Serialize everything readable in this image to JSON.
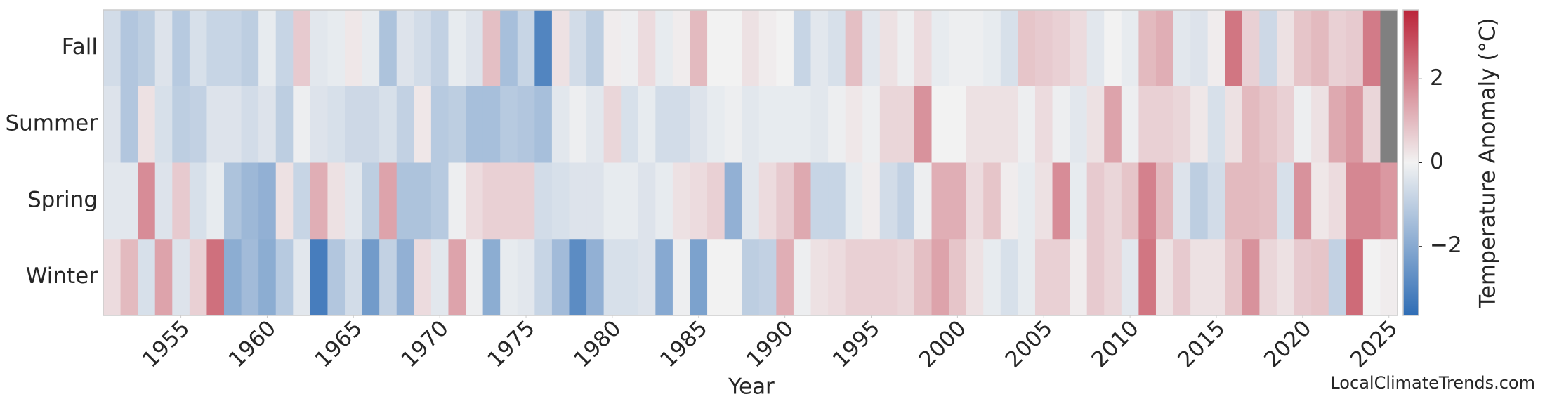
{
  "chart_data": {
    "type": "heatmap",
    "x_label": "Year",
    "x": [
      1951,
      1952,
      1953,
      1954,
      1955,
      1956,
      1957,
      1958,
      1959,
      1960,
      1961,
      1962,
      1963,
      1964,
      1965,
      1966,
      1967,
      1968,
      1969,
      1970,
      1971,
      1972,
      1973,
      1974,
      1975,
      1976,
      1977,
      1978,
      1979,
      1980,
      1981,
      1982,
      1983,
      1984,
      1985,
      1986,
      1987,
      1988,
      1989,
      1990,
      1991,
      1992,
      1993,
      1994,
      1995,
      1996,
      1997,
      1998,
      1999,
      2000,
      2001,
      2002,
      2003,
      2004,
      2005,
      2006,
      2007,
      2008,
      2009,
      2010,
      2011,
      2012,
      2013,
      2014,
      2015,
      2016,
      2017,
      2018,
      2019,
      2020,
      2021,
      2022,
      2023,
      2024,
      2025
    ],
    "xlim": [
      1950.5,
      2025.5
    ],
    "xticks": [
      1955,
      1960,
      1965,
      1970,
      1975,
      1980,
      1985,
      1990,
      1995,
      2000,
      2005,
      2010,
      2015,
      2020,
      2025
    ],
    "series": [
      {
        "name": "Fall",
        "values": [
          -0.6,
          -1.2,
          -1.0,
          -0.4,
          -1.1,
          -0.5,
          -0.8,
          -0.8,
          -1.0,
          -0.2,
          -0.8,
          0.7,
          -0.3,
          -0.2,
          0.2,
          -0.2,
          -1.3,
          -0.4,
          -0.6,
          -0.9,
          -0.2,
          -0.4,
          0.9,
          -1.4,
          -0.8,
          -3.0,
          0.3,
          -0.6,
          -1.0,
          0.1,
          -0.1,
          0.4,
          -0.2,
          0.1,
          1.0,
          0.0,
          0.0,
          0.3,
          0.1,
          0.0,
          -0.8,
          -0.3,
          -0.5,
          0.9,
          -0.3,
          0.3,
          -0.1,
          0.4,
          -0.2,
          -0.1,
          -0.1,
          -0.2,
          -0.5,
          0.8,
          0.7,
          0.6,
          0.4,
          -0.3,
          0.0,
          -0.2,
          1.0,
          1.2,
          -0.3,
          -0.4,
          0.1,
          2.2,
          0.6,
          -0.7,
          0.3,
          0.8,
          1.0,
          0.6,
          0.7,
          2.1,
          null
        ]
      },
      {
        "name": "Summer",
        "values": [
          -0.4,
          -1.2,
          0.3,
          -0.5,
          -1.0,
          -0.9,
          -0.4,
          -0.4,
          -0.6,
          -0.4,
          -1.0,
          -0.1,
          -0.4,
          -0.5,
          -0.7,
          -0.7,
          -0.5,
          -0.9,
          0.2,
          -1.1,
          -1.0,
          -1.4,
          -1.4,
          -1.1,
          -1.2,
          -1.4,
          -0.3,
          -0.1,
          -0.3,
          0.5,
          -0.5,
          -0.2,
          -0.6,
          -0.6,
          -0.4,
          -0.2,
          -0.1,
          -0.3,
          -0.2,
          -0.2,
          -0.2,
          -0.3,
          -0.1,
          0.2,
          -0.1,
          0.5,
          0.5,
          1.7,
          0.0,
          0.0,
          0.3,
          0.3,
          0.3,
          -0.1,
          0.4,
          -0.1,
          -0.3,
          0.3,
          1.4,
          -0.1,
          0.6,
          0.6,
          0.5,
          0.2,
          -0.5,
          0.3,
          1.0,
          0.8,
          0.6,
          -0.1,
          0.3,
          1.3,
          1.6,
          0.5,
          null
        ]
      },
      {
        "name": "Spring",
        "values": [
          -0.3,
          -0.3,
          1.8,
          -0.4,
          0.7,
          -0.5,
          -0.2,
          -1.3,
          -1.6,
          -1.8,
          0.3,
          -0.8,
          1.2,
          0.3,
          -0.3,
          -1.0,
          1.4,
          -1.3,
          -1.3,
          -1.1,
          -0.1,
          0.4,
          0.6,
          0.6,
          0.6,
          -0.6,
          -0.5,
          -0.4,
          -0.4,
          -0.2,
          -0.2,
          -0.4,
          -0.2,
          0.3,
          0.4,
          0.6,
          -1.8,
          -0.3,
          0.4,
          0.7,
          1.3,
          -0.8,
          -0.8,
          -0.2,
          0.1,
          -0.6,
          -0.9,
          -0.1,
          1.2,
          1.2,
          0.4,
          0.8,
          0.1,
          -0.2,
          0.3,
          1.8,
          -0.2,
          0.7,
          0.5,
          0.8,
          2.0,
          1.0,
          -0.4,
          -1.0,
          -0.6,
          1.0,
          1.0,
          0.9,
          -0.5,
          1.7,
          0.2,
          0.4,
          1.9,
          1.9,
          1.6
        ]
      },
      {
        "name": "Winter",
        "values": [
          0.4,
          1.0,
          -0.5,
          1.4,
          -0.4,
          0.6,
          2.3,
          -1.9,
          -1.5,
          -1.9,
          -1.1,
          -0.3,
          -3.2,
          -1.2,
          -0.6,
          -2.4,
          -0.9,
          -1.8,
          0.4,
          -0.3,
          1.4,
          -0.1,
          -1.9,
          -0.2,
          -0.3,
          -0.8,
          -1.5,
          -2.8,
          -1.8,
          -0.5,
          -0.5,
          -0.4,
          -2.0,
          -0.1,
          -2.2,
          0.0,
          0.0,
          -1.0,
          -0.9,
          1.2,
          -0.1,
          0.3,
          0.4,
          0.6,
          0.6,
          0.6,
          0.5,
          0.9,
          1.4,
          0.8,
          0.3,
          -0.2,
          -0.5,
          -0.2,
          0.6,
          0.6,
          0.1,
          0.7,
          0.5,
          -0.3,
          2.2,
          0.3,
          0.7,
          0.3,
          0.3,
          0.8,
          1.7,
          0.5,
          0.3,
          0.7,
          0.8,
          -0.9,
          2.4,
          0.0,
          0.1
        ]
      }
    ],
    "colormap": [
      "#2f6db5",
      "#f2f2f2",
      "#bb2439"
    ],
    "missing_color": "#808080",
    "colorbar": {
      "label": "Temperature Anomaly (°C)",
      "lim": [
        -3.65,
        3.65
      ],
      "ticks": [
        {
          "value": -2,
          "label": "−2"
        },
        0,
        2
      ]
    },
    "watermark": "LocalClimateTrends.com"
  }
}
